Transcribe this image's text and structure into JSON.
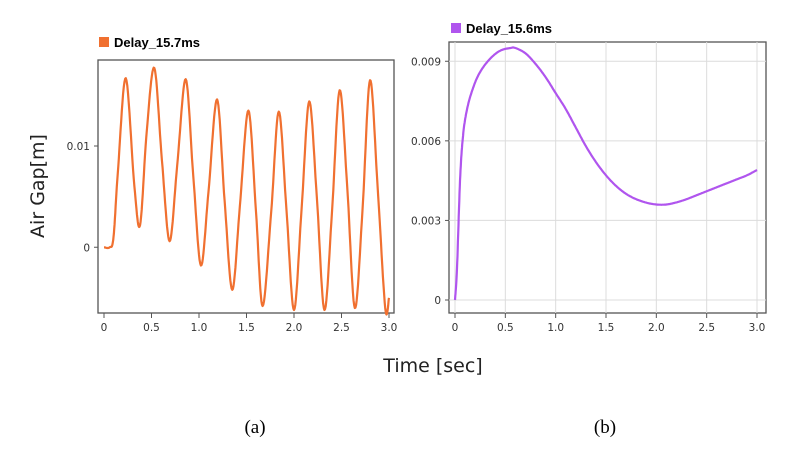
{
  "figure": {
    "ylabel": "Air Gap[m]",
    "xlabel": "Time [sec]",
    "captions": [
      "(a)",
      "(b)"
    ]
  },
  "chart_data": [
    {
      "type": "line",
      "series": [
        {
          "name": "Delay_15.7ms",
          "color": "#f07030"
        }
      ],
      "xlim": [
        0,
        3.0
      ],
      "ylim": [
        -0.006,
        0.018
      ],
      "x_ticks": [
        "0",
        "0.5",
        "1.0",
        "1.5",
        "2.0",
        "2.5",
        "3.0"
      ],
      "y_ticks": [
        "0",
        "0.01"
      ],
      "grid": false,
      "legend": "top-left",
      "x": [
        0,
        0.06,
        0.1,
        0.15,
        0.23,
        0.32,
        0.38,
        0.45,
        0.53,
        0.61,
        0.69,
        0.77,
        0.86,
        0.94,
        1.02,
        1.1,
        1.19,
        1.27,
        1.35,
        1.43,
        1.52,
        1.6,
        1.67,
        1.76,
        1.84,
        1.92,
        2.0,
        2.08,
        2.16,
        2.24,
        2.32,
        2.4,
        2.48,
        2.56,
        2.64,
        2.72,
        2.8,
        2.88,
        2.96,
        3.0
      ],
      "y": [
        0,
        0,
        0.001,
        0.008,
        0.0167,
        0.006,
        0.0022,
        0.0115,
        0.0177,
        0.0086,
        0.0006,
        0.008,
        0.0166,
        0.007,
        -0.0018,
        0.0055,
        0.0146,
        0.0045,
        -0.0042,
        0.004,
        0.0135,
        0.0035,
        -0.0058,
        0.0035,
        0.0134,
        0.0038,
        -0.0062,
        0.0038,
        0.0144,
        0.005,
        -0.0062,
        0.0035,
        0.0155,
        0.006,
        -0.006,
        0.0035,
        0.0165,
        0.006,
        -0.006,
        -0.005
      ]
    },
    {
      "type": "line",
      "series": [
        {
          "name": "Delay_15.6ms",
          "color": "#b055ee"
        }
      ],
      "xlim": [
        0,
        3.0
      ],
      "ylim": [
        0,
        0.0095
      ],
      "x_ticks": [
        "0",
        "0.5",
        "1.0",
        "1.5",
        "2.0",
        "2.5",
        "3.0"
      ],
      "y_ticks": [
        "0",
        "0.003",
        "0.006",
        "0.009"
      ],
      "grid": true,
      "legend": "top-left",
      "x": [
        0,
        0.02,
        0.05,
        0.08,
        0.12,
        0.18,
        0.25,
        0.35,
        0.45,
        0.55,
        0.6,
        0.7,
        0.8,
        0.9,
        1.0,
        1.1,
        1.2,
        1.3,
        1.4,
        1.5,
        1.6,
        1.7,
        1.8,
        1.9,
        2.0,
        2.1,
        2.2,
        2.3,
        2.4,
        2.5,
        2.6,
        2.7,
        2.8,
        2.9,
        3.0
      ],
      "y": [
        0,
        0.0012,
        0.0045,
        0.0062,
        0.0072,
        0.008,
        0.0086,
        0.0091,
        0.0094,
        0.0095,
        0.0095,
        0.0093,
        0.0089,
        0.0084,
        0.0078,
        0.0072,
        0.0065,
        0.0058,
        0.0052,
        0.0047,
        0.0043,
        0.004,
        0.0038,
        0.00367,
        0.0036,
        0.0036,
        0.00368,
        0.0038,
        0.00395,
        0.0041,
        0.00425,
        0.0044,
        0.00455,
        0.0047,
        0.0049
      ]
    }
  ]
}
